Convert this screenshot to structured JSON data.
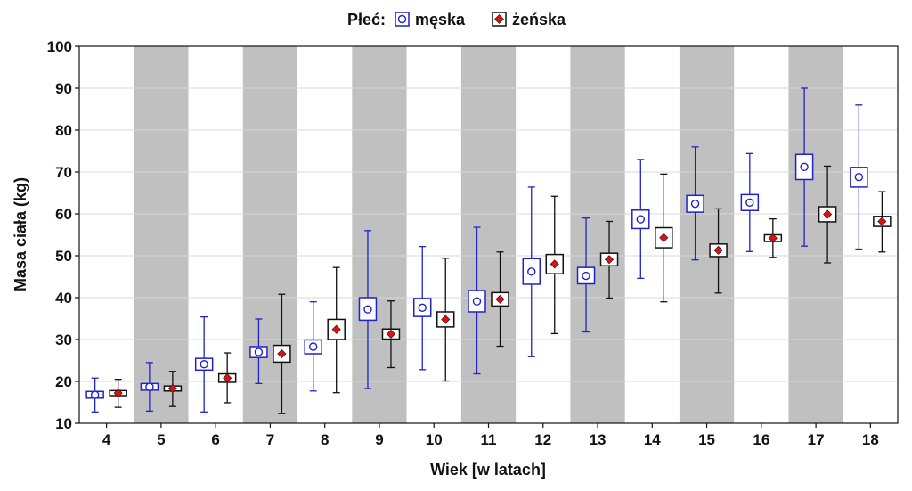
{
  "chart_data": {
    "type": "box",
    "title": "",
    "legend": {
      "title": "Płeć:",
      "placement": "top-center",
      "entries": [
        {
          "name": "męska",
          "color": "#1f23c8",
          "marker": "circle"
        },
        {
          "name": "żeńska",
          "color": "#111111",
          "marker": "diamond",
          "marker_fill": "#e01010"
        }
      ]
    },
    "xlabel": "Wiek [w latach]",
    "ylabel": "Masa ciała (kg)",
    "ylim": [
      10,
      100
    ],
    "yticks": [
      "10",
      "20",
      "30",
      "40",
      "50",
      "60",
      "70",
      "80",
      "90",
      "100"
    ],
    "categories": [
      "4",
      "5",
      "6",
      "7",
      "8",
      "9",
      "10",
      "11",
      "12",
      "13",
      "14",
      "15",
      "16",
      "17",
      "18"
    ],
    "shaded_categories": [
      "5",
      "7",
      "9",
      "11",
      "13",
      "15",
      "17"
    ],
    "grid": true,
    "series": [
      {
        "name": "męska",
        "color": "#1f23c8",
        "center": [
          16.8,
          18.7,
          24.1,
          27.0,
          28.3,
          37.2,
          37.6,
          39.1,
          46.2,
          45.2,
          58.7,
          62.4,
          62.7,
          71.2,
          68.8
        ],
        "box_low": [
          16.0,
          17.9,
          22.7,
          25.7,
          26.6,
          34.6,
          35.5,
          36.6,
          43.2,
          43.3,
          56.5,
          60.4,
          60.8,
          68.2,
          66.4
        ],
        "box_high": [
          17.6,
          19.5,
          25.5,
          28.3,
          29.9,
          40.0,
          39.8,
          41.7,
          49.3,
          47.2,
          60.9,
          64.4,
          64.6,
          74.2,
          71.1
        ],
        "whisker_low": [
          12.7,
          12.9,
          12.7,
          19.5,
          17.7,
          18.3,
          22.8,
          21.8,
          25.9,
          31.8,
          44.6,
          49.0,
          51.0,
          52.3,
          51.6
        ],
        "whisker_high": [
          20.8,
          24.5,
          35.4,
          34.9,
          39.0,
          56.0,
          52.2,
          56.8,
          66.4,
          59.0,
          73.0,
          76.0,
          74.4,
          90.0,
          86.0
        ]
      },
      {
        "name": "żeńska",
        "color": "#111111",
        "center": [
          17.2,
          18.3,
          20.8,
          26.6,
          32.4,
          31.3,
          34.8,
          39.6,
          48.0,
          49.1,
          54.3,
          51.3,
          54.2,
          59.9,
          58.2
        ],
        "box_low": [
          16.6,
          17.7,
          19.8,
          24.6,
          30.0,
          30.1,
          33.0,
          38.0,
          45.7,
          47.6,
          51.9,
          49.8,
          53.4,
          58.1,
          57.0
        ],
        "box_high": [
          17.8,
          18.9,
          21.8,
          28.6,
          34.8,
          32.5,
          36.6,
          41.2,
          50.3,
          50.6,
          56.7,
          52.8,
          55.0,
          61.7,
          59.4
        ],
        "whisker_low": [
          13.8,
          14.0,
          14.9,
          12.3,
          17.3,
          23.3,
          20.1,
          28.4,
          31.4,
          39.9,
          39.0,
          41.1,
          49.6,
          48.3,
          50.9
        ],
        "whisker_high": [
          20.5,
          22.4,
          26.8,
          40.8,
          47.2,
          39.2,
          49.4,
          50.9,
          64.2,
          58.2,
          69.5,
          61.2,
          58.8,
          71.4,
          65.3
        ]
      }
    ]
  }
}
